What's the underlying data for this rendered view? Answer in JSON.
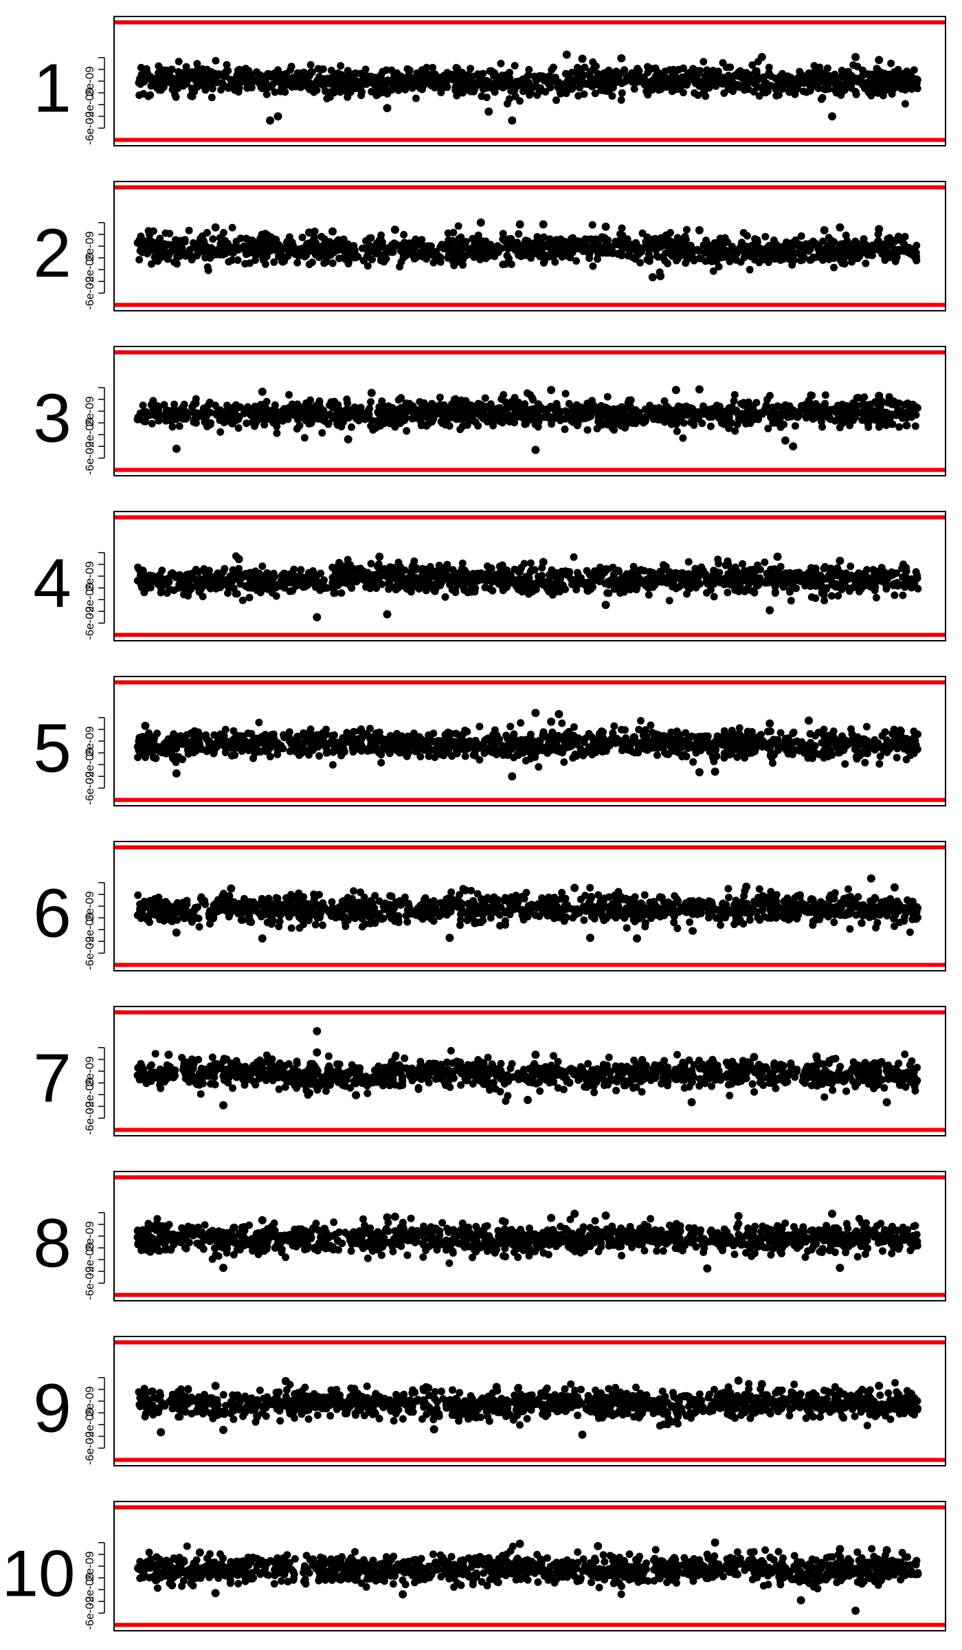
{
  "chart_data": [
    {
      "type": "scatter",
      "panel_label": "1",
      "ytick_labels": [
        "-6e-09",
        "-2e-09",
        "2e-09"
      ],
      "threshold_lines": [
        -8e-09,
        1.2e-08
      ],
      "point_band": {
        "center": 2e-09,
        "spread": 1.2e-09,
        "n_points": 1200
      },
      "outliers": [
        [
          0.17,
          -4.7e-09
        ],
        [
          0.18,
          -4e-09
        ],
        [
          0.32,
          -2.6e-09
        ],
        [
          0.45,
          -3.2e-09
        ],
        [
          0.48,
          -4.7e-09
        ],
        [
          0.55,
          6.5e-09
        ],
        [
          0.57,
          5.8e-09
        ],
        [
          0.62,
          5.9e-09
        ],
        [
          0.8,
          6.1e-09
        ],
        [
          0.89,
          -4e-09
        ],
        [
          0.92,
          6.1e-09
        ],
        [
          0.95,
          5.6e-09
        ]
      ]
    },
    {
      "type": "scatter",
      "panel_label": "2",
      "ytick_labels": [
        "-6e-09",
        "-2e-09",
        "2e-09"
      ],
      "threshold_lines": [
        -8e-09,
        1.2e-08
      ],
      "point_band": {
        "center": 1.5e-09,
        "spread": 1.2e-09,
        "n_points": 1200
      },
      "outliers": [
        [
          0.1,
          5.2e-09
        ],
        [
          0.22,
          4.3e-09
        ],
        [
          0.25,
          4.5e-09
        ],
        [
          0.33,
          4.8e-09
        ],
        [
          0.44,
          6e-09
        ],
        [
          0.49,
          5.7e-09
        ],
        [
          0.52,
          5.7e-09
        ],
        [
          0.6,
          5.3e-09
        ],
        [
          0.66,
          -3.3e-09
        ],
        [
          0.67,
          -3.1e-09
        ],
        [
          0.72,
          4.7e-09
        ],
        [
          0.88,
          4.7e-09
        ],
        [
          0.9,
          5.2e-09
        ],
        [
          0.95,
          4.9e-09
        ]
      ]
    },
    {
      "type": "scatter",
      "panel_label": "3",
      "ytick_labels": [
        "-6e-09",
        "-2e-09",
        "2e-09"
      ],
      "threshold_lines": [
        -8e-09,
        1.2e-08
      ],
      "point_band": {
        "center": 1.5e-09,
        "spread": 1.2e-09,
        "n_points": 1200
      },
      "outliers": [
        [
          0.05,
          -4.4e-09
        ],
        [
          0.16,
          5.3e-09
        ],
        [
          0.27,
          -2.8e-09
        ],
        [
          0.3,
          5.1e-09
        ],
        [
          0.51,
          -4.6e-09
        ],
        [
          0.53,
          5.6e-09
        ],
        [
          0.69,
          5.6e-09
        ],
        [
          0.72,
          5.7e-09
        ],
        [
          0.83,
          -3e-09
        ],
        [
          0.84,
          -4e-09
        ],
        [
          0.95,
          4.6e-09
        ]
      ]
    },
    {
      "type": "scatter",
      "panel_label": "4",
      "ytick_labels": [
        "-6e-09",
        "-2e-09",
        "2e-09"
      ],
      "threshold_lines": [
        -8e-09,
        1.2e-08
      ],
      "point_band": {
        "center": 1.5e-09,
        "spread": 1.2e-09,
        "n_points": 1200
      },
      "outliers": [
        [
          0.13,
          4.9e-09
        ],
        [
          0.23,
          -5e-09
        ],
        [
          0.31,
          5.3e-09
        ],
        [
          0.32,
          -4.5e-09
        ],
        [
          0.52,
          4.4e-09
        ],
        [
          0.6,
          -2.9e-09
        ],
        [
          0.81,
          -3.8e-09
        ],
        [
          0.82,
          5.3e-09
        ],
        [
          0.9,
          4.6e-09
        ]
      ]
    },
    {
      "type": "scatter",
      "panel_label": "5",
      "ytick_labels": [
        "-6e-09",
        "-2e-09",
        "2e-09"
      ],
      "threshold_lines": [
        -8e-09,
        1.2e-08
      ],
      "point_band": {
        "center": 1.5e-09,
        "spread": 1.2e-09,
        "n_points": 1200
      },
      "outliers": [
        [
          0.01,
          4.6e-09
        ],
        [
          0.05,
          -3.5e-09
        ],
        [
          0.48,
          -4e-09
        ],
        [
          0.51,
          6.8e-09
        ],
        [
          0.53,
          5.3e-09
        ],
        [
          0.54,
          6.6e-09
        ],
        [
          0.72,
          -3.3e-09
        ],
        [
          0.74,
          -3.2e-09
        ],
        [
          0.81,
          5e-09
        ],
        [
          0.86,
          5.5e-09
        ]
      ]
    },
    {
      "type": "scatter",
      "panel_label": "6",
      "ytick_labels": [
        "-6e-09",
        "-2e-09",
        "2e-09"
      ],
      "threshold_lines": [
        -8e-09,
        1.2e-08
      ],
      "point_band": {
        "center": 1.5e-09,
        "spread": 1.2e-09,
        "n_points": 1200
      },
      "outliers": [
        [
          0.05,
          -2.5e-09
        ],
        [
          0.12,
          5e-09
        ],
        [
          0.16,
          -3.5e-09
        ],
        [
          0.4,
          -3.4e-09
        ],
        [
          0.42,
          4.7e-09
        ],
        [
          0.56,
          5.1e-09
        ],
        [
          0.58,
          -3.4e-09
        ],
        [
          0.64,
          -3.5e-09
        ],
        [
          0.78,
          5.3e-09
        ],
        [
          0.94,
          6.7e-09
        ],
        [
          0.97,
          5.2e-09
        ]
      ]
    },
    {
      "type": "scatter",
      "panel_label": "7",
      "ytick_labels": [
        "-6e-09",
        "-2e-09",
        "2e-09"
      ],
      "threshold_lines": [
        -8e-09,
        1.2e-08
      ],
      "point_band": {
        "center": 1.5e-09,
        "spread": 1.2e-09,
        "n_points": 1200
      },
      "outliers": [
        [
          0.04,
          4.8e-09
        ],
        [
          0.11,
          -3.8e-09
        ],
        [
          0.23,
          8.8e-09
        ],
        [
          0.23,
          5.2e-09
        ],
        [
          0.28,
          -2.1e-09
        ],
        [
          0.5,
          -2.9e-09
        ],
        [
          0.51,
          4.8e-09
        ],
        [
          0.71,
          -3.3e-09
        ],
        [
          0.79,
          4.4e-09
        ],
        [
          0.87,
          4.5e-09
        ],
        [
          0.96,
          -3.3e-09
        ]
      ]
    },
    {
      "type": "scatter",
      "panel_label": "8",
      "ytick_labels": [
        "-6e-09",
        "-2e-09",
        "2e-09"
      ],
      "threshold_lines": [
        -8e-09,
        1.2e-08
      ],
      "point_band": {
        "center": 1.5e-09,
        "spread": 1.2e-09,
        "n_points": 1200
      },
      "outliers": [
        [
          0.11,
          -3.4e-09
        ],
        [
          0.16,
          4.7e-09
        ],
        [
          0.32,
          5.2e-09
        ],
        [
          0.33,
          5.3e-09
        ],
        [
          0.53,
          5.1e-09
        ],
        [
          0.56,
          5.8e-09
        ],
        [
          0.6,
          5.5e-09
        ],
        [
          0.73,
          -3.5e-09
        ],
        [
          0.77,
          5.4e-09
        ],
        [
          0.89,
          5.8e-09
        ],
        [
          0.9,
          -3.4e-09
        ]
      ]
    },
    {
      "type": "scatter",
      "panel_label": "9",
      "ytick_labels": [
        "-6e-09",
        "-2e-09",
        "2e-09"
      ],
      "threshold_lines": [
        -8e-09,
        1.2e-08
      ],
      "point_band": {
        "center": 1.5e-09,
        "spread": 1.2e-09,
        "n_points": 1200
      },
      "outliers": [
        [
          0.03,
          -3.3e-09
        ],
        [
          0.1,
          4.6e-09
        ],
        [
          0.11,
          -2.9e-09
        ],
        [
          0.19,
          5.4e-09
        ],
        [
          0.38,
          -2.8e-09
        ],
        [
          0.46,
          4.4e-09
        ],
        [
          0.57,
          -3.7e-09
        ],
        [
          0.77,
          5.5e-09
        ],
        [
          0.8,
          4.9e-09
        ],
        [
          0.95,
          4.6e-09
        ]
      ]
    },
    {
      "type": "scatter",
      "panel_label": "10",
      "ytick_labels": [
        "-6e-09",
        "-2e-09",
        "2e-09"
      ],
      "threshold_lines": [
        -8e-09,
        1.2e-08
      ],
      "point_band": {
        "center": 1.5e-09,
        "spread": 1.2e-09,
        "n_points": 1200
      },
      "outliers": [
        [
          0.08,
          4.3e-09
        ],
        [
          0.1,
          -2.6e-09
        ],
        [
          0.34,
          -2.8e-09
        ],
        [
          0.49,
          5.8e-09
        ],
        [
          0.59,
          5.4e-09
        ],
        [
          0.74,
          6e-09
        ],
        [
          0.85,
          -3.8e-09
        ],
        [
          0.9,
          4.9e-09
        ],
        [
          0.92,
          -5.6e-09
        ],
        [
          0.96,
          4.7e-09
        ]
      ]
    }
  ],
  "colors": {
    "points": "#000000",
    "threshold_line": "#e8000b",
    "frame": "#000000"
  }
}
